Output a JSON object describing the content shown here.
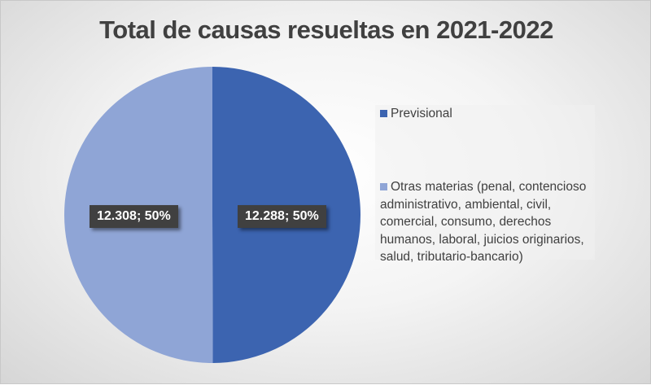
{
  "chart_data": {
    "type": "pie",
    "title": "Total de causas resueltas en 2021-2022",
    "legend_position": "right",
    "series": [
      {
        "name": "Previsional",
        "value": 12288,
        "label": "12.288; 50%",
        "color": "#3C64B0"
      },
      {
        "name": "Otras materias (penal, contencioso administrativo, ambiental, civil, comercial, consumo, derechos humanos, laboral, juicios originarios, salud, tributario-bancario)",
        "value": 12308,
        "label": "12.308; 50%",
        "color": "#8FA5D6"
      }
    ],
    "start_angle": "top",
    "direction": "clockwise"
  }
}
